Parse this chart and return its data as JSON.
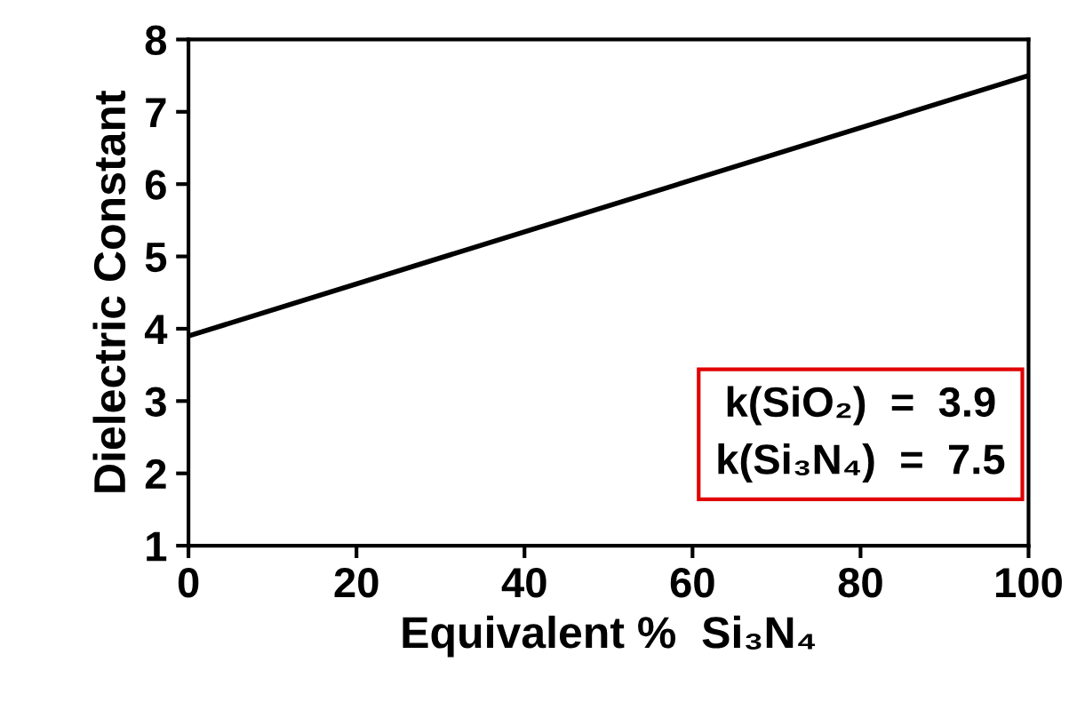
{
  "chart_data": {
    "type": "line",
    "xlabel": "Equivalent %  Si₃N₄",
    "ylabel": "Dielectric Constant",
    "x": [
      0,
      100
    ],
    "series": [
      {
        "color": "#000000",
        "values": [
          3.9,
          7.5
        ]
      }
    ],
    "xlim": [
      0,
      100
    ],
    "xticks": [
      0,
      20,
      40,
      60,
      80,
      100
    ],
    "ylim": [
      1,
      8
    ],
    "yticks": [
      1,
      2,
      3,
      4,
      5,
      6,
      7,
      8
    ],
    "grid": false,
    "marker": "none",
    "line_style": "solid",
    "annotations": [
      "k(SiO₂)  =  3.9",
      "k(Si₃N₄)  =  7.5"
    ]
  }
}
